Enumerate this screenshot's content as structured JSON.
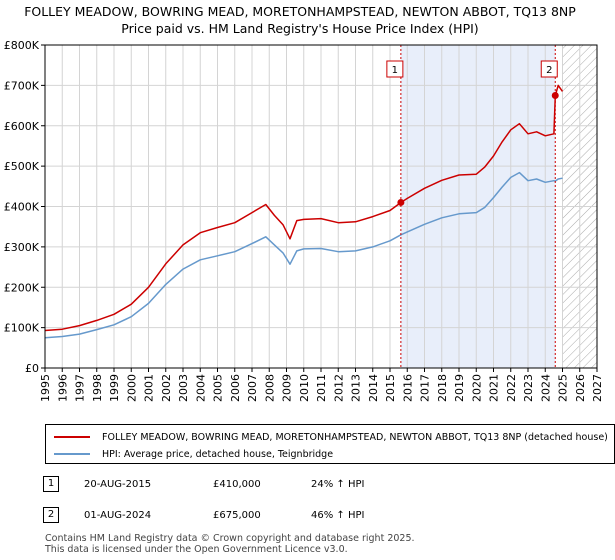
{
  "title_line1": "FOLLEY MEADOW, BOWRING MEAD, MORETONHAMPSTEAD, NEWTON ABBOT, TQ13 8NP",
  "title_line2": "Price paid vs. HM Land Registry's House Price Index (HPI)",
  "chart_data": {
    "type": "line",
    "title": "Price paid vs. HM Land Registry's House Price Index (HPI)",
    "xlabel": "",
    "ylabel": "",
    "xlim": [
      1995,
      2027
    ],
    "ylim": [
      0,
      800000
    ],
    "x_ticks": [
      "1995",
      "1996",
      "1997",
      "1998",
      "1999",
      "2000",
      "2001",
      "2002",
      "2003",
      "2004",
      "2005",
      "2006",
      "2007",
      "2008",
      "2009",
      "2010",
      "2011",
      "2012",
      "2013",
      "2014",
      "2015",
      "2016",
      "2017",
      "2018",
      "2019",
      "2020",
      "2021",
      "2022",
      "2023",
      "2024",
      "2025",
      "2026",
      "2027"
    ],
    "y_ticks": [
      {
        "value": 0,
        "label": "£0"
      },
      {
        "value": 100000,
        "label": "£100K"
      },
      {
        "value": 200000,
        "label": "£200K"
      },
      {
        "value": 300000,
        "label": "£300K"
      },
      {
        "value": 400000,
        "label": "£400K"
      },
      {
        "value": 500000,
        "label": "£500K"
      },
      {
        "value": 600000,
        "label": "£600K"
      },
      {
        "value": 700000,
        "label": "£700K"
      },
      {
        "value": 800000,
        "label": "£800K"
      }
    ],
    "grid": true,
    "shaded_period": [
      2015.63,
      2024.58
    ],
    "hatched_from": 2025.0,
    "series": [
      {
        "name": "FOLLEY MEADOW, BOWRING MEAD, MORETONHAMPSTEAD, NEWTON ABBOT, TQ13 8NP (detached house)",
        "color": "#cc0000",
        "x": [
          1995,
          1996,
          1997,
          1998,
          1999,
          2000,
          2001,
          2002,
          2003,
          2004,
          2005,
          2006,
          2007,
          2007.8,
          2008.3,
          2008.8,
          2009.2,
          2009.6,
          2010,
          2011,
          2012,
          2013,
          2014,
          2015,
          2015.63,
          2016,
          2017,
          2018,
          2019,
          2020,
          2020.5,
          2021,
          2021.5,
          2022,
          2022.5,
          2023,
          2023.5,
          2024,
          2024.5,
          2024.58,
          2024.75,
          2025.0
        ],
        "y": [
          93000,
          96000,
          105000,
          118000,
          133000,
          158000,
          200000,
          258000,
          305000,
          335000,
          348000,
          360000,
          385000,
          405000,
          378000,
          355000,
          320000,
          365000,
          368000,
          370000,
          360000,
          362000,
          375000,
          390000,
          410000,
          420000,
          445000,
          465000,
          478000,
          480000,
          498000,
          525000,
          560000,
          590000,
          605000,
          580000,
          585000,
          575000,
          580000,
          675000,
          700000,
          685000
        ]
      },
      {
        "name": "HPI: Average price, detached house, Teignbridge",
        "color": "#6699cc",
        "x": [
          1995,
          1996,
          1997,
          1998,
          1999,
          2000,
          2001,
          2002,
          2003,
          2004,
          2005,
          2006,
          2007,
          2007.8,
          2008.3,
          2008.8,
          2009.2,
          2009.6,
          2010,
          2011,
          2012,
          2013,
          2014,
          2015,
          2015.63,
          2016,
          2017,
          2018,
          2019,
          2020,
          2020.5,
          2021,
          2021.5,
          2022,
          2022.5,
          2023,
          2023.5,
          2024,
          2024.5,
          2024.58,
          2024.75,
          2025.0
        ],
        "y": [
          75000,
          78000,
          84000,
          95000,
          107000,
          127000,
          160000,
          207000,
          245000,
          268000,
          278000,
          288000,
          308000,
          325000,
          305000,
          285000,
          257000,
          290000,
          295000,
          296000,
          288000,
          290000,
          300000,
          315000,
          330000,
          337000,
          356000,
          372000,
          382000,
          385000,
          398000,
          422000,
          448000,
          472000,
          484000,
          464000,
          468000,
          460000,
          464000,
          463000,
          468000,
          470000
        ]
      }
    ],
    "markers": [
      {
        "label": "1",
        "x": 2015.63,
        "y": 410000
      },
      {
        "label": "2",
        "x": 2024.58,
        "y": 675000
      }
    ]
  },
  "legend": {
    "series1_label": "FOLLEY MEADOW, BOWRING MEAD, MORETONHAMPSTEAD, NEWTON ABBOT, TQ13 8NP (detached house)",
    "series2_label": "HPI: Average price, detached house, Teignbridge",
    "series1_color": "#cc0000",
    "series2_color": "#6699cc"
  },
  "transactions": [
    {
      "num": "1",
      "date": "20-AUG-2015",
      "price": "£410,000",
      "hpi": "24% ↑ HPI"
    },
    {
      "num": "2",
      "date": "01-AUG-2024",
      "price": "£675,000",
      "hpi": "46% ↑ HPI"
    }
  ],
  "footer_line1": "Contains HM Land Registry data © Crown copyright and database right 2025.",
  "footer_line2": "This data is licensed under the Open Government Licence v3.0."
}
